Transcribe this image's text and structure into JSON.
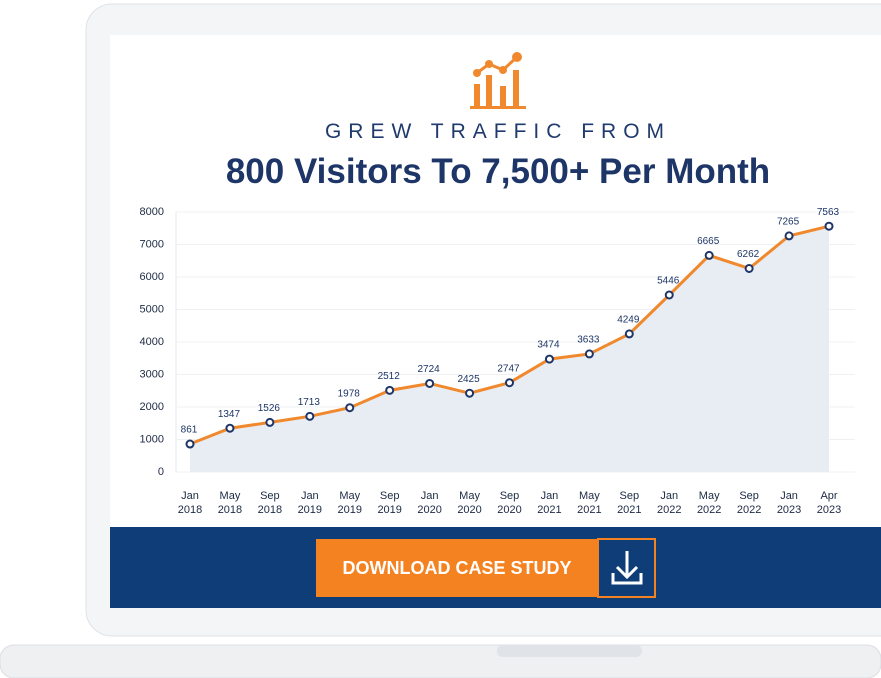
{
  "header": {
    "kicker": "GREW TRAFFIC FROM",
    "title": "800 Visitors To 7,500+ Per Month"
  },
  "button": {
    "label": "DOWNLOAD CASE STUDY"
  },
  "chart_data": {
    "type": "line",
    "categories": [
      "Jan 2018",
      "May 2018",
      "Sep 2018",
      "Jan 2019",
      "May 2019",
      "Sep 2019",
      "Jan 2020",
      "May 2020",
      "Sep 2020",
      "Jan 2021",
      "May 2021",
      "Sep 2021",
      "Jan 2022",
      "May 2022",
      "Sep 2022",
      "Jan 2023",
      "Apr 2023"
    ],
    "values": [
      861,
      1347,
      1526,
      1713,
      1978,
      2512,
      2724,
      2425,
      2747,
      3474,
      3633,
      4249,
      5446,
      6665,
      6262,
      7265,
      7563
    ],
    "color": "#f0892d",
    "area_color": "#e8ecf3",
    "marker_color": "#1d3567",
    "ylim": [
      0,
      8000
    ],
    "yticks": [
      0,
      1000,
      2000,
      3000,
      4000,
      5000,
      6000,
      7000,
      8000
    ],
    "grid": true
  }
}
